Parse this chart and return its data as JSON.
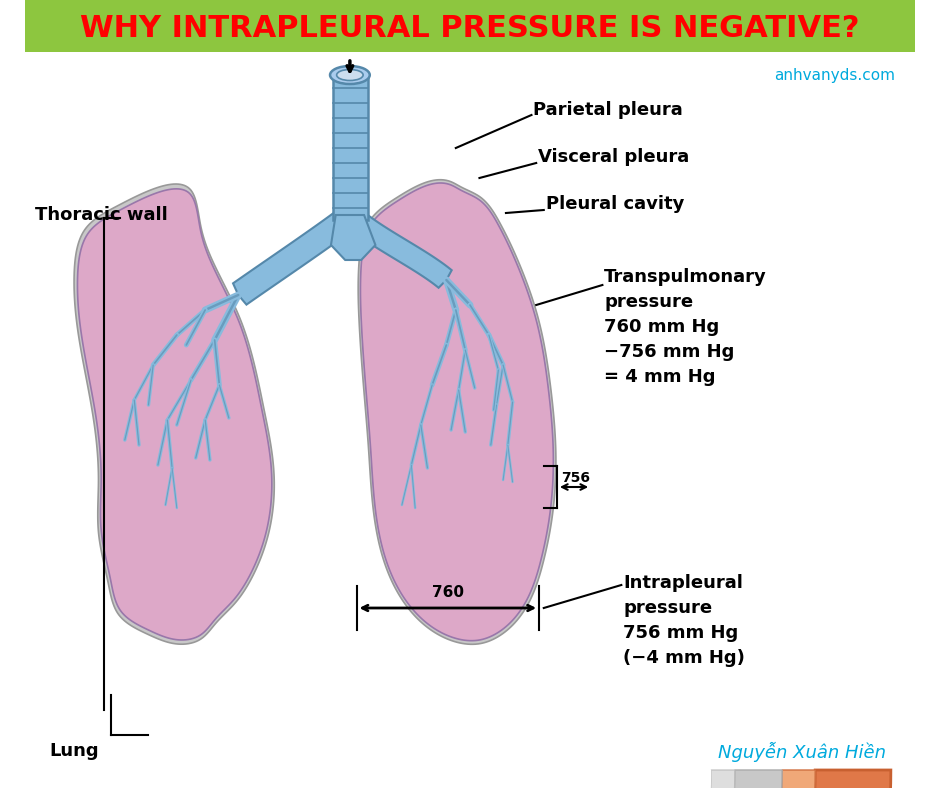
{
  "title": "WHY INTRAPLEURAL PRESSURE IS NEGATIVE?",
  "title_color": "#FF0000",
  "title_bg": "#8DC63F",
  "bg_color": "#FFFFFF",
  "website": "anhvanyds.com",
  "website_color": "#00AADD",
  "author": "Nguyễn Xuân Hiền",
  "author_color": "#00AADD",
  "labels": {
    "thoracic_wall": "Thoracic wall",
    "parietal_pleura": "Parietal pleura",
    "visceral_pleura": "Visceral pleura",
    "pleural_cavity": "Pleural cavity",
    "transpulmonary": "Transpulmonary\npressure\n760 mm Hg\n−756 mm Hg\n= 4 mm Hg",
    "intrapleural": "Intrapleural\npressure\n756 mm Hg\n(−4 mm Hg)",
    "lung": "Lung",
    "val_756": "756",
    "val_760": "760"
  },
  "colors": {
    "thoracic_wall_outer": "#E07848",
    "thoracic_wall_inner": "#F0A878",
    "pleural_space": "#C8C8C8",
    "pleural_inner": "#D8D8D8",
    "lung_fill": "#DDA8C8",
    "lung_border": "#9977AA",
    "bronchi_fill": "#88BBDD",
    "bronchi_edge": "#5588AA",
    "trachea_fill": "#AACCEE",
    "outline": "#555555",
    "bg": "#FFFFFF"
  }
}
